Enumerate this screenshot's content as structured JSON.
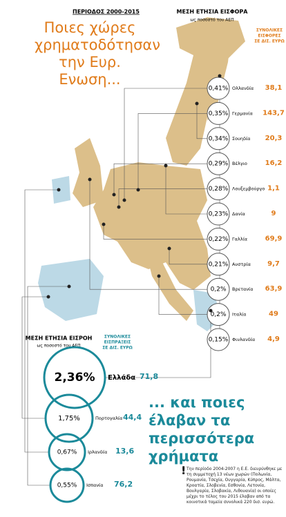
{
  "header": {
    "period": "ΠΕΡΙΟΔΟΣ 2000-2015",
    "title": "Ποιες χώρες χρηματοδότησαν την Ευρ. Ενωση..."
  },
  "contributors": {
    "heading": "ΜΕΣΗ ΕΤΗΣΙΑ ΕΙΣΦΟΡΑ",
    "subheading": "ως ποσοστό του ΑΕΠ",
    "totals_heading": [
      "ΣΥΝΟΛΙΚΕΣ",
      "ΕΙΣΦΟΡΕΣ",
      "ΣΕ ΔΙΣ. ΕΥΡΩ"
    ],
    "items": [
      {
        "percent": "0,41%",
        "country": "Ολλανδία",
        "total": "38,1"
      },
      {
        "percent": "0,35%",
        "country": "Γερμανία",
        "total": "143,7"
      },
      {
        "percent": "0,34%",
        "country": "Σουηδία",
        "total": "20,3"
      },
      {
        "percent": "0,29%",
        "country": "Βέλγιο",
        "total": "16,2"
      },
      {
        "percent": "0,28%",
        "country": "Λουξεμβούργο",
        "total": "1,1"
      },
      {
        "percent": "0,23%",
        "country": "Δανία",
        "total": "9"
      },
      {
        "percent": "0,22%",
        "country": "Γαλλία",
        "total": "69,9"
      },
      {
        "percent": "0,21%",
        "country": "Αυστρία",
        "total": "9,7"
      },
      {
        "percent": "0,2%",
        "country": "Βρετανία",
        "total": "63,9"
      },
      {
        "percent": "0,2%",
        "country": "Ιταλία",
        "total": "49"
      },
      {
        "percent": "0,15%",
        "country": "Φινλανδία",
        "total": "4,9"
      }
    ]
  },
  "recipients": {
    "heading": "ΜΕΣΗ ΕΤΗΣΙΑ ΕΙΣΡΟΗ",
    "subheading": "ως ποσοστό του ΑΕΠ",
    "totals_heading": [
      "ΣΥΝΟΛΙΚΕΣ",
      "ΕΙΣΠΡΑΞΕΙΣ",
      "ΣΕ ΔΙΣ. ΕΥΡΩ"
    ],
    "items": [
      {
        "percent": "2,36%",
        "country": "Ελλάδα",
        "total": "71,8"
      },
      {
        "percent": "1,75%",
        "country": "Πορτογαλία",
        "total": "44,4"
      },
      {
        "percent": "0,67%",
        "country": "Ιρλανδία",
        "total": "13,6"
      },
      {
        "percent": "0,55%",
        "country": "Ισπανία",
        "total": "76,2"
      }
    ]
  },
  "subtitle": "... και ποιες έλαβαν τα περισσότερα χρήματα",
  "note": "Την περίοδο 2004-2007 η Ε.Ε. διευρύνθηκε με τη συμμετοχή 13 νέων χωρών (Πολωνία, Ρουμανία, Τσεχία, Ουγγαρία, Κύπρος, Μάλτα, Κροατία, Σλοβενία, Εσθονία, Λετονία, Βουλγαρία, Σλοβακία, Λιθουανία) οι οποίες μέχρι το τέλος του 2015 έλαβαν από τα κοινοτικά ταμεία συνολικά 220 δισ. ευρώ."
}
